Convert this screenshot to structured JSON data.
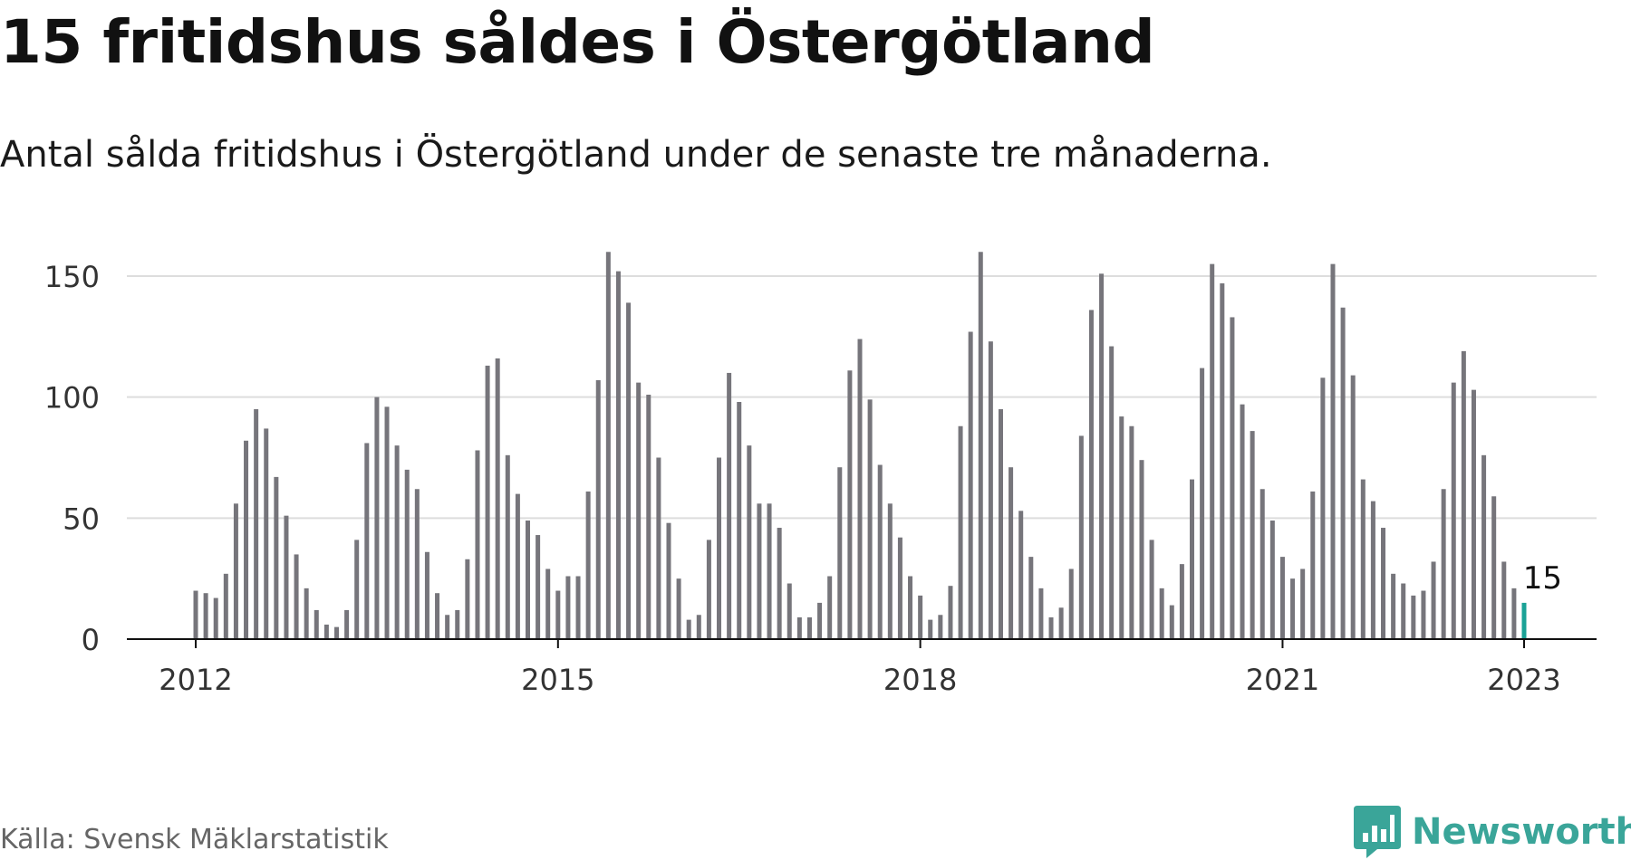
{
  "title": "15 fritidshus såldes i Östergötland",
  "subtitle": "Antal sålda fritidshus i Östergötland under de senaste tre månaderna.",
  "source": "Källa: Svensk Mäklarstatistik",
  "logo": {
    "name": "Newsworthy",
    "icon": "bar-chart-speech-bubble-icon"
  },
  "colors": {
    "bar": "#76757b",
    "highlight": "#1aa296",
    "grid": "#dddddd",
    "axis": "#111111",
    "logo": "#3aa599"
  },
  "chart_data": {
    "type": "bar",
    "x_start": "2012-01",
    "x_end": "2023-01",
    "y_ticks": [
      0,
      50,
      100,
      150
    ],
    "x_ticks": [
      "2012",
      "2015",
      "2018",
      "2021",
      "2023"
    ],
    "ylim": [
      0,
      160
    ],
    "grid": true,
    "highlight_label": "15",
    "values": [
      20,
      19,
      17,
      27,
      56,
      82,
      95,
      87,
      67,
      51,
      35,
      21,
      12,
      6,
      5,
      12,
      41,
      81,
      100,
      96,
      80,
      70,
      62,
      36,
      19,
      10,
      12,
      33,
      78,
      113,
      116,
      76,
      60,
      49,
      43,
      29,
      20,
      26,
      26,
      61,
      107,
      160,
      152,
      139,
      106,
      101,
      75,
      48,
      25,
      8,
      10,
      41,
      75,
      110,
      98,
      80,
      56,
      56,
      46,
      23,
      9,
      9,
      15,
      26,
      71,
      111,
      124,
      99,
      72,
      56,
      42,
      26,
      18,
      8,
      10,
      22,
      88,
      127,
      160,
      123,
      95,
      71,
      53,
      34,
      21,
      9,
      13,
      29,
      84,
      136,
      151,
      121,
      92,
      88,
      74,
      41,
      21,
      14,
      31,
      66,
      112,
      155,
      147,
      133,
      97,
      86,
      62,
      49,
      34,
      25,
      29,
      61,
      108,
      155,
      137,
      109,
      66,
      57,
      46,
      27,
      23,
      18,
      20,
      32,
      62,
      106,
      119,
      103,
      76,
      59,
      32,
      21,
      15
    ]
  }
}
